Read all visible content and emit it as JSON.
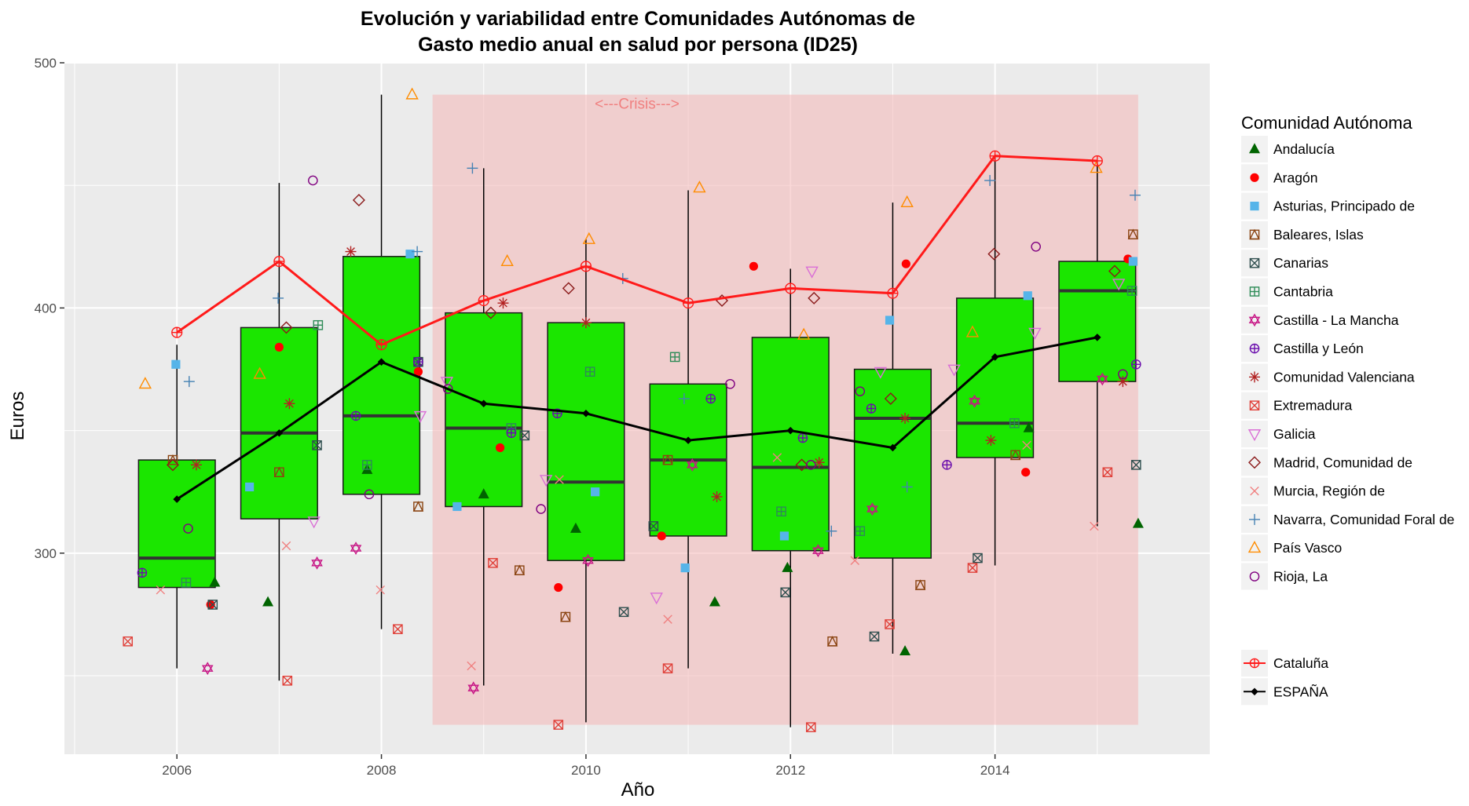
{
  "chart_data": {
    "type": "boxplot",
    "title_lines": [
      "Evolución y variabilidad entre Comunidades Autónomas de",
      "Gasto medio anual en salud por persona (ID25)"
    ],
    "xlabel": "Año",
    "ylabel": "Euros",
    "xlim": [
      2004.9,
      2016.1
    ],
    "ylim": [
      218,
      500
    ],
    "x_ticks": [
      2006,
      2008,
      2010,
      2012,
      2014
    ],
    "y_ticks": [
      300,
      400,
      500
    ],
    "grid": true,
    "background": "#ebebeb",
    "box_fill": "#1be600",
    "crisis": {
      "label": "<---Crisis--->",
      "x_range": [
        2008.5,
        2015.4
      ],
      "y_range": [
        230,
        487
      ],
      "color": "#f4b6b6"
    },
    "boxes": [
      {
        "year": 2006,
        "min": 253,
        "q1": 286,
        "median": 298,
        "q3": 338,
        "max": 385
      },
      {
        "year": 2007,
        "min": 248,
        "q1": 314,
        "median": 349,
        "q3": 392,
        "max": 451
      },
      {
        "year": 2008,
        "min": 269,
        "q1": 324,
        "median": 356,
        "q3": 421,
        "max": 487
      },
      {
        "year": 2009,
        "min": 246,
        "q1": 319,
        "median": 351,
        "q3": 398,
        "max": 457
      },
      {
        "year": 2010,
        "min": 231,
        "q1": 297,
        "median": 329,
        "q3": 394,
        "max": 428
      },
      {
        "year": 2011,
        "min": 253,
        "q1": 307,
        "median": 338,
        "q3": 369,
        "max": 448
      },
      {
        "year": 2012,
        "min": 229,
        "q1": 301,
        "median": 335,
        "q3": 388,
        "max": 416
      },
      {
        "year": 2013,
        "min": 259,
        "q1": 298,
        "median": 355,
        "q3": 375,
        "max": 443
      },
      {
        "year": 2014,
        "min": 295,
        "q1": 339,
        "median": 353,
        "q3": 404,
        "max": 462
      },
      {
        "year": 2015,
        "min": 311,
        "q1": 370,
        "median": 407,
        "q3": 419,
        "max": 460
      }
    ],
    "lines": [
      {
        "name": "Cataluña",
        "color": "#ff1a1a",
        "shape": "circle-plus",
        "x": [
          2006,
          2007,
          2008,
          2009,
          2010,
          2011,
          2012,
          2013,
          2014,
          2015
        ],
        "y": [
          390,
          419,
          385,
          403,
          417,
          402,
          408,
          406,
          462,
          460
        ]
      },
      {
        "name": "ESPAÑA",
        "color": "#000000",
        "shape": "diamond",
        "x": [
          2006,
          2007,
          2008,
          2009,
          2010,
          2011,
          2012,
          2013,
          2014,
          2015
        ],
        "y": [
          322,
          349,
          378,
          361,
          357,
          346,
          350,
          343,
          380,
          388
        ]
      }
    ],
    "legend_title": "Comunidad Autónoma",
    "series": [
      {
        "name": "Andalucía",
        "color": "#006400",
        "shape": "triangle-filled",
        "points": [
          [
            2006.37,
            288
          ],
          [
            2006.89,
            280
          ],
          [
            2007.86,
            334
          ],
          [
            2009.0,
            324
          ],
          [
            2009.9,
            310
          ],
          [
            2011.26,
            280
          ],
          [
            2011.97,
            294
          ],
          [
            2013.12,
            260
          ],
          [
            2014.33,
            351
          ],
          [
            2015.4,
            312
          ]
        ]
      },
      {
        "name": "Aragón",
        "color": "#ff0000",
        "shape": "circle-filled",
        "points": [
          [
            2006.33,
            279
          ],
          [
            2007.0,
            384
          ],
          [
            2008.36,
            374
          ],
          [
            2009.16,
            343
          ],
          [
            2009.73,
            286
          ],
          [
            2010.74,
            307
          ],
          [
            2011.64,
            417
          ],
          [
            2013.13,
            418
          ],
          [
            2014.3,
            333
          ],
          [
            2015.3,
            420
          ]
        ]
      },
      {
        "name": "Asturias, Principado de",
        "color": "#56b4e9",
        "shape": "square-filled",
        "points": [
          [
            2005.99,
            377
          ],
          [
            2006.71,
            327
          ],
          [
            2008.28,
            422
          ],
          [
            2008.74,
            319
          ],
          [
            2010.09,
            325
          ],
          [
            2010.97,
            294
          ],
          [
            2011.94,
            307
          ],
          [
            2012.97,
            395
          ],
          [
            2014.32,
            405
          ],
          [
            2015.35,
            419
          ]
        ]
      },
      {
        "name": "Baleares, Islas",
        "color": "#8b4513",
        "shape": "square-triangle",
        "points": [
          [
            2005.96,
            338
          ],
          [
            2007.0,
            333
          ],
          [
            2008.36,
            319
          ],
          [
            2009.35,
            293
          ],
          [
            2009.8,
            274
          ],
          [
            2010.8,
            338
          ],
          [
            2012.41,
            264
          ],
          [
            2013.27,
            287
          ],
          [
            2014.2,
            340
          ],
          [
            2015.35,
            430
          ]
        ]
      },
      {
        "name": "Canarias",
        "color": "#2f4f4f",
        "shape": "square-x",
        "points": [
          [
            2006.35,
            279
          ],
          [
            2007.37,
            344
          ],
          [
            2008.36,
            378
          ],
          [
            2009.4,
            348
          ],
          [
            2010.37,
            276
          ],
          [
            2010.66,
            311
          ],
          [
            2011.95,
            284
          ],
          [
            2012.82,
            266
          ],
          [
            2013.83,
            298
          ],
          [
            2015.38,
            336
          ]
        ]
      },
      {
        "name": "Cantabria",
        "color": "#2e8b57",
        "shape": "square-plus",
        "points": [
          [
            2006.09,
            288
          ],
          [
            2007.38,
            393
          ],
          [
            2007.86,
            336
          ],
          [
            2009.27,
            351
          ],
          [
            2010.04,
            374
          ],
          [
            2010.87,
            380
          ],
          [
            2011.91,
            317
          ],
          [
            2012.68,
            309
          ],
          [
            2014.19,
            353
          ],
          [
            2015.34,
            407
          ]
        ]
      },
      {
        "name": "Castilla - La Mancha",
        "color": "#c71585",
        "shape": "star-david",
        "points": [
          [
            2006.3,
            253
          ],
          [
            2007.37,
            296
          ],
          [
            2007.75,
            302
          ],
          [
            2008.9,
            245
          ],
          [
            2010.02,
            297
          ],
          [
            2011.04,
            336
          ],
          [
            2012.27,
            301
          ],
          [
            2012.8,
            318
          ],
          [
            2013.8,
            362
          ],
          [
            2015.05,
            371
          ]
        ]
      },
      {
        "name": "Castilla y León",
        "color": "#6a0dad",
        "shape": "circle-plus",
        "points": [
          [
            2005.66,
            292
          ],
          [
            2007.75,
            356
          ],
          [
            2008.36,
            378
          ],
          [
            2009.27,
            349
          ],
          [
            2009.72,
            357
          ],
          [
            2011.22,
            363
          ],
          [
            2012.12,
            347
          ],
          [
            2012.79,
            359
          ],
          [
            2013.53,
            336
          ],
          [
            2015.38,
            377
          ]
        ]
      },
      {
        "name": "Comunidad Valenciana",
        "color": "#b22222",
        "shape": "asterisk",
        "points": [
          [
            2006.19,
            336
          ],
          [
            2007.1,
            361
          ],
          [
            2007.7,
            423
          ],
          [
            2009.19,
            402
          ],
          [
            2010.0,
            394
          ],
          [
            2011.28,
            323
          ],
          [
            2012.28,
            337
          ],
          [
            2013.12,
            355
          ],
          [
            2013.96,
            346
          ],
          [
            2015.25,
            370
          ]
        ]
      },
      {
        "name": "Extremadura",
        "color": "#e0413a",
        "shape": "square-x",
        "points": [
          [
            2005.52,
            264
          ],
          [
            2007.08,
            248
          ],
          [
            2008.16,
            269
          ],
          [
            2009.09,
            296
          ],
          [
            2009.73,
            230
          ],
          [
            2010.8,
            253
          ],
          [
            2012.2,
            229
          ],
          [
            2012.97,
            271
          ],
          [
            2013.78,
            294
          ],
          [
            2015.1,
            333
          ]
        ]
      },
      {
        "name": "Galicia",
        "color": "#da70d6",
        "shape": "triangle-down",
        "points": [
          [
            2007.34,
            313
          ],
          [
            2008.38,
            356
          ],
          [
            2008.64,
            370
          ],
          [
            2009.61,
            330
          ],
          [
            2010.69,
            282
          ],
          [
            2012.21,
            415
          ],
          [
            2012.88,
            374
          ],
          [
            2013.6,
            375
          ],
          [
            2014.39,
            390
          ],
          [
            2015.21,
            410
          ]
        ]
      },
      {
        "name": "Madrid, Comunidad de",
        "color": "#8b1a1a",
        "shape": "diamond",
        "points": [
          [
            2005.96,
            336
          ],
          [
            2007.07,
            392
          ],
          [
            2007.78,
            444
          ],
          [
            2009.07,
            398
          ],
          [
            2009.83,
            408
          ],
          [
            2011.33,
            403
          ],
          [
            2012.11,
            336
          ],
          [
            2012.23,
            404
          ],
          [
            2012.98,
            363
          ],
          [
            2013.99,
            422
          ],
          [
            2015.17,
            415
          ]
        ]
      },
      {
        "name": "Murcia, Región de",
        "color": "#f08080",
        "shape": "x",
        "points": [
          [
            2005.84,
            285
          ],
          [
            2007.07,
            303
          ],
          [
            2007.99,
            285
          ],
          [
            2008.88,
            254
          ],
          [
            2009.74,
            330
          ],
          [
            2010.8,
            273
          ],
          [
            2011.87,
            339
          ],
          [
            2012.63,
            297
          ],
          [
            2014.31,
            344
          ],
          [
            2014.97,
            311
          ]
        ]
      },
      {
        "name": "Navarra, Comunidad Foral de",
        "color": "#4682b4",
        "shape": "plus",
        "points": [
          [
            2006.12,
            370
          ],
          [
            2006.99,
            404
          ],
          [
            2008.35,
            423
          ],
          [
            2008.89,
            457
          ],
          [
            2010.36,
            412
          ],
          [
            2010.96,
            363
          ],
          [
            2012.4,
            309
          ],
          [
            2013.14,
            327
          ],
          [
            2013.95,
            452
          ],
          [
            2015.37,
            446
          ]
        ]
      },
      {
        "name": "País Vasco",
        "color": "#ff8c00",
        "shape": "triangle-open",
        "points": [
          [
            2005.69,
            369
          ],
          [
            2006.81,
            373
          ],
          [
            2008.3,
            487
          ],
          [
            2009.23,
            419
          ],
          [
            2010.03,
            428
          ],
          [
            2011.11,
            449
          ],
          [
            2012.13,
            389
          ],
          [
            2013.14,
            443
          ],
          [
            2013.78,
            390
          ],
          [
            2014.99,
            457
          ]
        ]
      },
      {
        "name": "Rioja, La",
        "color": "#800080",
        "shape": "circle-open",
        "points": [
          [
            2006.11,
            310
          ],
          [
            2007.33,
            452
          ],
          [
            2007.88,
            324
          ],
          [
            2008.65,
            367
          ],
          [
            2009.56,
            318
          ],
          [
            2011.41,
            369
          ],
          [
            2012.2,
            336
          ],
          [
            2012.68,
            366
          ],
          [
            2014.4,
            425
          ],
          [
            2015.25,
            373
          ]
        ]
      }
    ]
  }
}
